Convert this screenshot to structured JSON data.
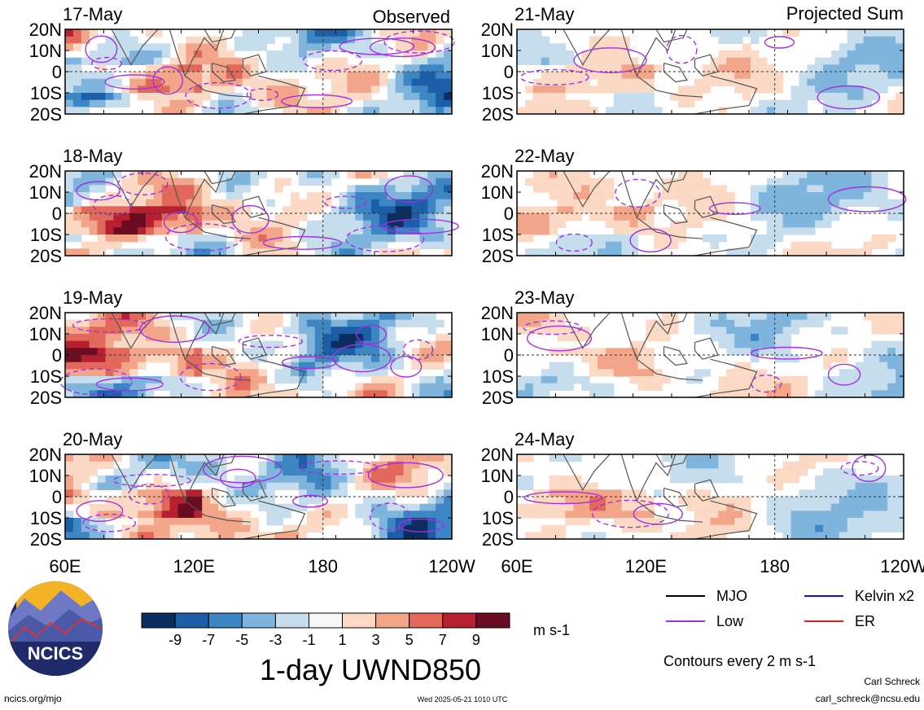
{
  "header": {
    "left_label": "Observed",
    "right_label": "Projected Sum"
  },
  "chart_data": {
    "type": "heatmap",
    "variable_title": "1-day UWND850",
    "units": "m s-1",
    "contour_note": "Contours every 2 m s-1",
    "x_ticks": [
      "60E",
      "120E",
      "180",
      "120W"
    ],
    "y_ticks": [
      "20N",
      "10N",
      "0",
      "10S",
      "20S"
    ],
    "colorbar": {
      "labels": [
        "-9",
        "-7",
        "-5",
        "-3",
        "-1",
        "1",
        "3",
        "5",
        "7",
        "9"
      ],
      "colors": [
        "#0a2f5e",
        "#1d5ea8",
        "#3c86c3",
        "#7fb5dc",
        "#c6ddee",
        "#f7f7f7",
        "#fbd9c4",
        "#f3a58a",
        "#e1685a",
        "#b8202f",
        "#6b0c22"
      ]
    },
    "panels_observed": [
      {
        "date": "17-May"
      },
      {
        "date": "18-May"
      },
      {
        "date": "19-May"
      },
      {
        "date": "20-May"
      }
    ],
    "panels_projected": [
      {
        "date": "21-May"
      },
      {
        "date": "22-May"
      },
      {
        "date": "23-May"
      },
      {
        "date": "24-May"
      }
    ],
    "legend": [
      {
        "name": "MJO",
        "color": "#000000"
      },
      {
        "name": "Kelvin x2",
        "color": "#1010e0"
      },
      {
        "name": "Low",
        "color": "#a030e0"
      },
      {
        "name": "ER",
        "color": "#e02020"
      }
    ]
  },
  "footer": {
    "logo_text": "NCICS",
    "url": "ncics.org/mjo",
    "timestamp": "Wed 2025-05-21 1010 UTC",
    "author": "Carl Schreck",
    "email": "carl_schreck@ncsu.edu"
  }
}
